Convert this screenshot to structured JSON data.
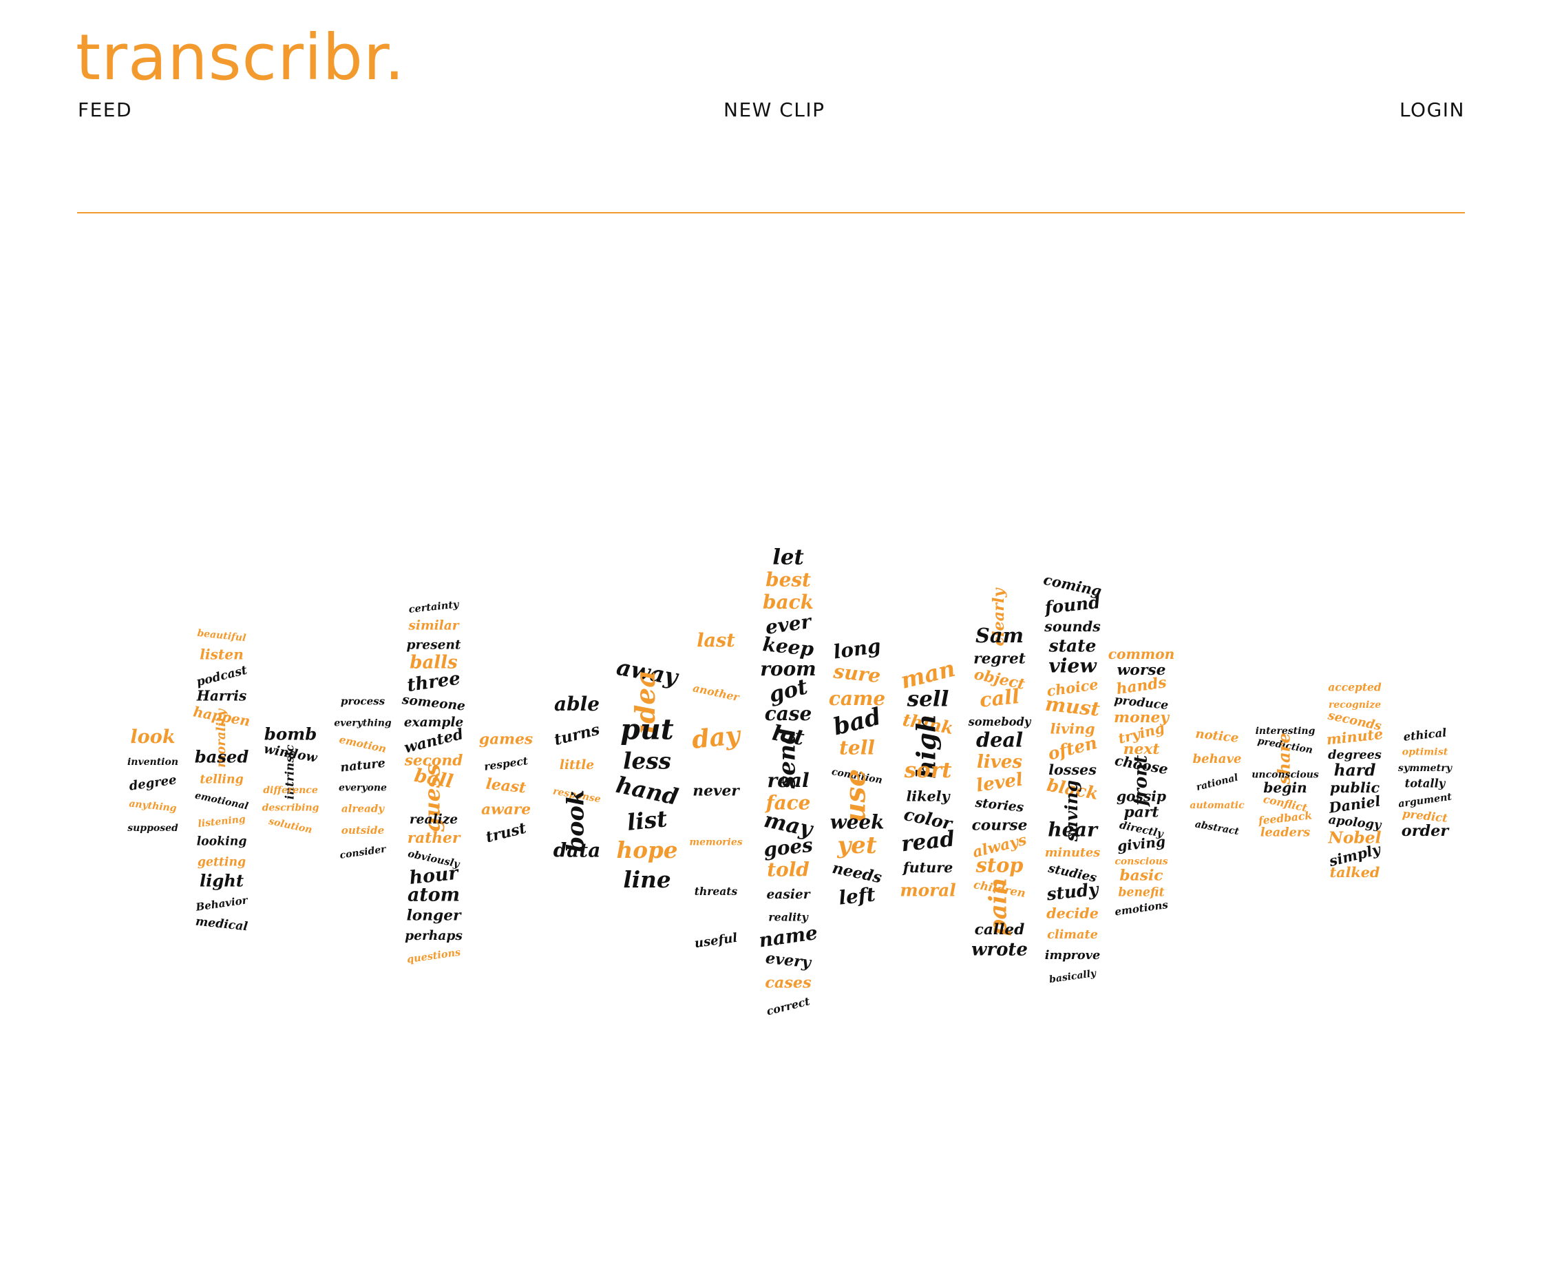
{
  "app": {
    "logo_text": "transcribr.",
    "accent_color": "#f39a2e",
    "text_color": "#111111"
  },
  "nav": {
    "feed_label": "FEED",
    "new_clip_label": "NEW CLIP",
    "login_label": "LOGIN"
  },
  "word_cloud": {
    "colors": {
      "dark": "#111111",
      "accent": "#f39a2e"
    },
    "columns": [
      {
        "words": [
          {
            "text": "look",
            "c": "a"
          },
          {
            "text": "invention",
            "c": "d"
          },
          {
            "text": "degree",
            "c": "d"
          },
          {
            "text": "anything",
            "c": "a"
          },
          {
            "text": "supposed",
            "c": "d"
          }
        ]
      },
      {
        "words": [
          {
            "text": "beautiful",
            "c": "a"
          },
          {
            "text": "listen",
            "c": "a"
          },
          {
            "text": "podcast",
            "c": "d"
          },
          {
            "text": "Harris",
            "c": "d"
          },
          {
            "text": "happen",
            "c": "a"
          },
          {
            "text": "morality",
            "c": "a"
          },
          {
            "text": "based",
            "c": "d"
          },
          {
            "text": "telling",
            "c": "a"
          },
          {
            "text": "emotional",
            "c": "d"
          },
          {
            "text": "listening",
            "c": "a"
          },
          {
            "text": "looking",
            "c": "d"
          },
          {
            "text": "getting",
            "c": "a"
          },
          {
            "text": "light",
            "c": "d"
          },
          {
            "text": "Behavior",
            "c": "d"
          },
          {
            "text": "medical",
            "c": "d"
          }
        ]
      },
      {
        "words": [
          {
            "text": "bomb",
            "c": "d"
          },
          {
            "text": "window",
            "c": "d"
          },
          {
            "text": "intrinsic",
            "c": "d"
          },
          {
            "text": "difference",
            "c": "a"
          },
          {
            "text": "describing",
            "c": "a"
          },
          {
            "text": "solution",
            "c": "a"
          }
        ]
      },
      {
        "words": [
          {
            "text": "process",
            "c": "d"
          },
          {
            "text": "everything",
            "c": "d"
          },
          {
            "text": "emotion",
            "c": "a"
          },
          {
            "text": "nature",
            "c": "d"
          },
          {
            "text": "everyone",
            "c": "d"
          },
          {
            "text": "already",
            "c": "a"
          },
          {
            "text": "outside",
            "c": "a"
          },
          {
            "text": "consider",
            "c": "d"
          }
        ]
      },
      {
        "words": [
          {
            "text": "certainty",
            "c": "d"
          },
          {
            "text": "similar",
            "c": "a"
          },
          {
            "text": "present",
            "c": "d"
          },
          {
            "text": "balls",
            "c": "a"
          },
          {
            "text": "three",
            "c": "d"
          },
          {
            "text": "someone",
            "c": "d"
          },
          {
            "text": "example",
            "c": "d"
          },
          {
            "text": "wanted",
            "c": "d"
          },
          {
            "text": "second",
            "c": "a"
          },
          {
            "text": "ball",
            "c": "a"
          },
          {
            "text": "guess",
            "c": "a"
          },
          {
            "text": "realize",
            "c": "d"
          },
          {
            "text": "rather",
            "c": "a"
          },
          {
            "text": "obviously",
            "c": "d"
          },
          {
            "text": "hour",
            "c": "d"
          },
          {
            "text": "atom",
            "c": "d"
          },
          {
            "text": "longer",
            "c": "d"
          },
          {
            "text": "perhaps",
            "c": "d"
          },
          {
            "text": "questions",
            "c": "a"
          }
        ]
      },
      {
        "words": [
          {
            "text": "games",
            "c": "a"
          },
          {
            "text": "respect",
            "c": "d"
          },
          {
            "text": "least",
            "c": "a"
          },
          {
            "text": "aware",
            "c": "a"
          },
          {
            "text": "trust",
            "c": "d"
          }
        ]
      },
      {
        "words": [
          {
            "text": "able",
            "c": "d"
          },
          {
            "text": "turns",
            "c": "d"
          },
          {
            "text": "little",
            "c": "a"
          },
          {
            "text": "response",
            "c": "a"
          },
          {
            "text": "book",
            "c": "d"
          },
          {
            "text": "data",
            "c": "d"
          }
        ]
      },
      {
        "words": [
          {
            "text": "away",
            "c": "d"
          },
          {
            "text": "idea",
            "c": "a"
          },
          {
            "text": "put",
            "c": "d"
          },
          {
            "text": "less",
            "c": "d"
          },
          {
            "text": "hand",
            "c": "d"
          },
          {
            "text": "list",
            "c": "d"
          },
          {
            "text": "hope",
            "c": "a"
          },
          {
            "text": "line",
            "c": "d"
          }
        ]
      },
      {
        "words": [
          {
            "text": "last",
            "c": "a"
          },
          {
            "text": "another",
            "c": "a"
          },
          {
            "text": "day",
            "c": "a"
          },
          {
            "text": "never",
            "c": "d"
          },
          {
            "text": "memories",
            "c": "a"
          },
          {
            "text": "threats",
            "c": "d"
          },
          {
            "text": "useful",
            "c": "d"
          }
        ]
      },
      {
        "words": [
          {
            "text": "let",
            "c": "d"
          },
          {
            "text": "best",
            "c": "a"
          },
          {
            "text": "back",
            "c": "a"
          },
          {
            "text": "ever",
            "c": "d"
          },
          {
            "text": "keep",
            "c": "d"
          },
          {
            "text": "room",
            "c": "d"
          },
          {
            "text": "got",
            "c": "d"
          },
          {
            "text": "case",
            "c": "d"
          },
          {
            "text": "lot",
            "c": "d"
          },
          {
            "text": "send",
            "c": "d"
          },
          {
            "text": "real",
            "c": "d"
          },
          {
            "text": "face",
            "c": "a"
          },
          {
            "text": "may",
            "c": "d"
          },
          {
            "text": "goes",
            "c": "d"
          },
          {
            "text": "told",
            "c": "a"
          },
          {
            "text": "easier",
            "c": "d"
          },
          {
            "text": "reality",
            "c": "d"
          },
          {
            "text": "name",
            "c": "d"
          },
          {
            "text": "every",
            "c": "d"
          },
          {
            "text": "cases",
            "c": "a"
          },
          {
            "text": "correct",
            "c": "d"
          }
        ]
      },
      {
        "words": [
          {
            "text": "long",
            "c": "d"
          },
          {
            "text": "sure",
            "c": "a"
          },
          {
            "text": "came",
            "c": "a"
          },
          {
            "text": "bad",
            "c": "d"
          },
          {
            "text": "tell",
            "c": "a"
          },
          {
            "text": "condition",
            "c": "d"
          },
          {
            "text": "use",
            "c": "a"
          },
          {
            "text": "week",
            "c": "d"
          },
          {
            "text": "yet",
            "c": "a"
          },
          {
            "text": "needs",
            "c": "d"
          },
          {
            "text": "left",
            "c": "d"
          }
        ]
      },
      {
        "words": [
          {
            "text": "man",
            "c": "a"
          },
          {
            "text": "sell",
            "c": "d"
          },
          {
            "text": "think",
            "c": "a"
          },
          {
            "text": "high",
            "c": "d"
          },
          {
            "text": "sort",
            "c": "a"
          },
          {
            "text": "likely",
            "c": "d"
          },
          {
            "text": "color",
            "c": "d"
          },
          {
            "text": "read",
            "c": "d"
          },
          {
            "text": "future",
            "c": "d"
          },
          {
            "text": "moral",
            "c": "a"
          }
        ]
      },
      {
        "words": [
          {
            "text": "clearly",
            "c": "a"
          },
          {
            "text": "Sam",
            "c": "d"
          },
          {
            "text": "regret",
            "c": "d"
          },
          {
            "text": "object",
            "c": "a"
          },
          {
            "text": "call",
            "c": "a"
          },
          {
            "text": "somebody",
            "c": "d"
          },
          {
            "text": "deal",
            "c": "d"
          },
          {
            "text": "lives",
            "c": "a"
          },
          {
            "text": "level",
            "c": "a"
          },
          {
            "text": "stories",
            "c": "d"
          },
          {
            "text": "course",
            "c": "d"
          },
          {
            "text": "always",
            "c": "a"
          },
          {
            "text": "stop",
            "c": "a"
          },
          {
            "text": "children",
            "c": "a"
          },
          {
            "text": "pain",
            "c": "a"
          },
          {
            "text": "called",
            "c": "d"
          },
          {
            "text": "wrote",
            "c": "d"
          }
        ]
      },
      {
        "words": [
          {
            "text": "coming",
            "c": "d"
          },
          {
            "text": "found",
            "c": "d"
          },
          {
            "text": "sounds",
            "c": "d"
          },
          {
            "text": "state",
            "c": "d"
          },
          {
            "text": "view",
            "c": "d"
          },
          {
            "text": "choice",
            "c": "a"
          },
          {
            "text": "must",
            "c": "a"
          },
          {
            "text": "living",
            "c": "a"
          },
          {
            "text": "often",
            "c": "a"
          },
          {
            "text": "losses",
            "c": "d"
          },
          {
            "text": "black",
            "c": "a"
          },
          {
            "text": "saving",
            "c": "d"
          },
          {
            "text": "hear",
            "c": "d"
          },
          {
            "text": "minutes",
            "c": "a"
          },
          {
            "text": "studies",
            "c": "d"
          },
          {
            "text": "study",
            "c": "d"
          },
          {
            "text": "decide",
            "c": "a"
          },
          {
            "text": "climate",
            "c": "a"
          },
          {
            "text": "improve",
            "c": "d"
          },
          {
            "text": "basically",
            "c": "d"
          }
        ]
      },
      {
        "words": [
          {
            "text": "common",
            "c": "a"
          },
          {
            "text": "worse",
            "c": "d"
          },
          {
            "text": "hands",
            "c": "a"
          },
          {
            "text": "produce",
            "c": "d"
          },
          {
            "text": "money",
            "c": "a"
          },
          {
            "text": "trying",
            "c": "a"
          },
          {
            "text": "next",
            "c": "a"
          },
          {
            "text": "choose",
            "c": "d"
          },
          {
            "text": "front",
            "c": "d"
          },
          {
            "text": "gossip",
            "c": "d"
          },
          {
            "text": "part",
            "c": "d"
          },
          {
            "text": "directly",
            "c": "d"
          },
          {
            "text": "giving",
            "c": "d"
          },
          {
            "text": "conscious",
            "c": "a"
          },
          {
            "text": "basic",
            "c": "a"
          },
          {
            "text": "benefit",
            "c": "a"
          },
          {
            "text": "emotions",
            "c": "d"
          }
        ]
      },
      {
        "words": [
          {
            "text": "notice",
            "c": "a"
          },
          {
            "text": "behave",
            "c": "a"
          },
          {
            "text": "rational",
            "c": "d"
          },
          {
            "text": "automatic",
            "c": "a"
          },
          {
            "text": "abstract",
            "c": "d"
          }
        ]
      },
      {
        "words": [
          {
            "text": "interesting",
            "c": "d"
          },
          {
            "text": "prediction",
            "c": "d"
          },
          {
            "text": "share",
            "c": "a"
          },
          {
            "text": "unconscious",
            "c": "d"
          },
          {
            "text": "begin",
            "c": "d"
          },
          {
            "text": "conflict",
            "c": "a"
          },
          {
            "text": "feedback",
            "c": "a"
          },
          {
            "text": "leaders",
            "c": "a"
          }
        ]
      },
      {
        "words": [
          {
            "text": "accepted",
            "c": "a"
          },
          {
            "text": "recognize",
            "c": "a"
          },
          {
            "text": "seconds",
            "c": "a"
          },
          {
            "text": "minute",
            "c": "a"
          },
          {
            "text": "degrees",
            "c": "d"
          },
          {
            "text": "hard",
            "c": "d"
          },
          {
            "text": "public",
            "c": "d"
          },
          {
            "text": "Daniel",
            "c": "d"
          },
          {
            "text": "apology",
            "c": "d"
          },
          {
            "text": "Nobel",
            "c": "a"
          },
          {
            "text": "simply",
            "c": "d"
          },
          {
            "text": "talked",
            "c": "a"
          }
        ]
      },
      {
        "words": [
          {
            "text": "ethical",
            "c": "d"
          },
          {
            "text": "optimist",
            "c": "a"
          },
          {
            "text": "symmetry",
            "c": "d"
          },
          {
            "text": "totally",
            "c": "d"
          },
          {
            "text": "argument",
            "c": "d"
          },
          {
            "text": "predict",
            "c": "a"
          },
          {
            "text": "order",
            "c": "d"
          }
        ]
      }
    ]
  }
}
